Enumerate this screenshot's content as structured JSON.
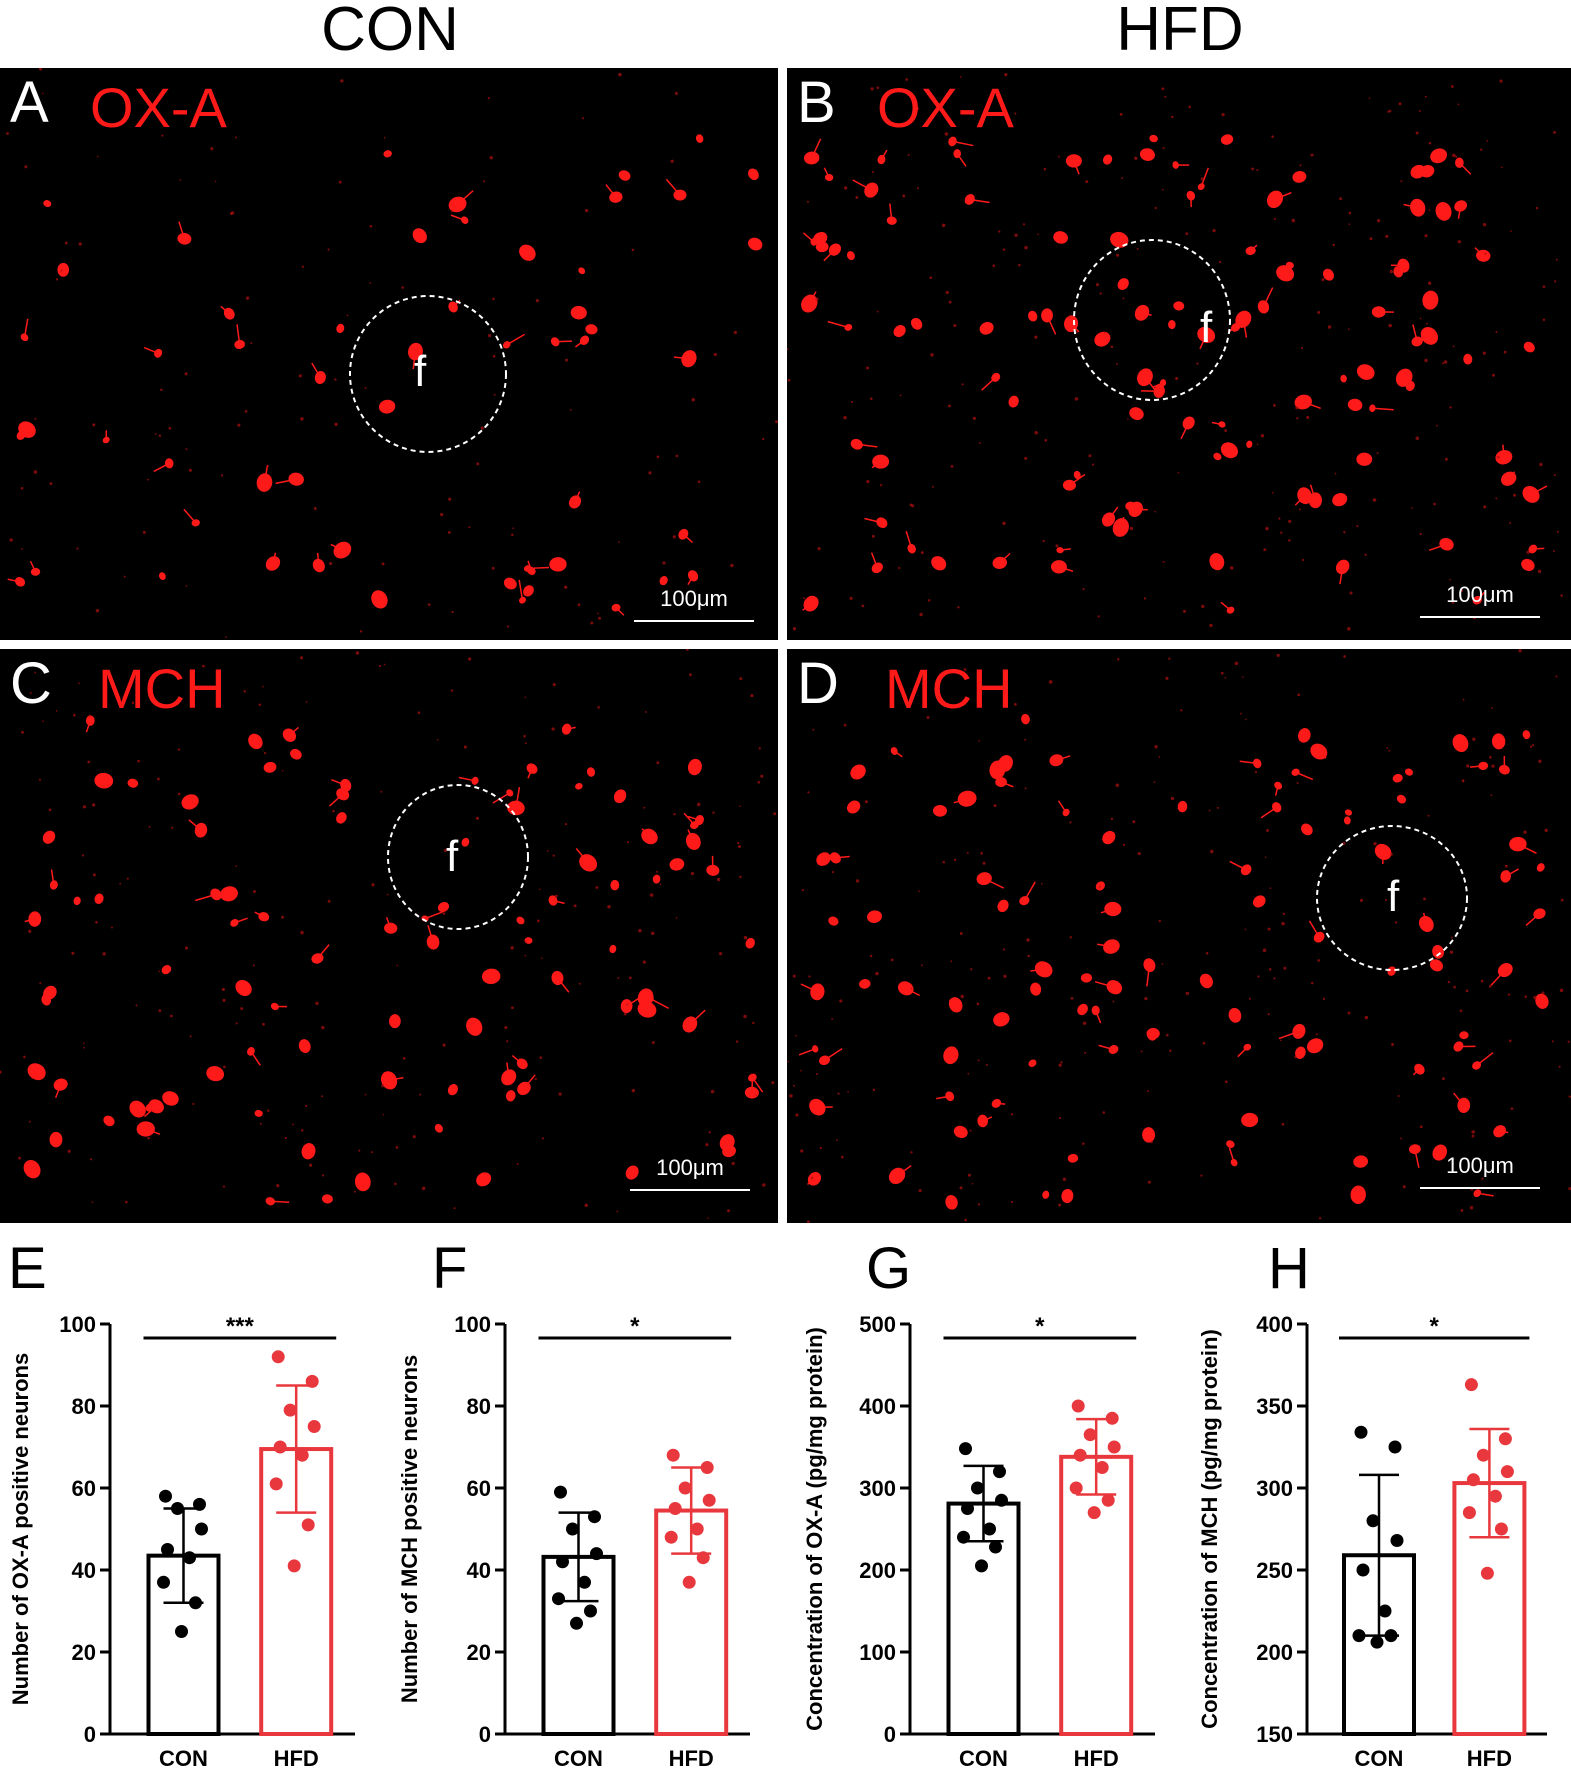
{
  "columns": {
    "left": "CON",
    "right": "HFD"
  },
  "panels": [
    {
      "letter": "A",
      "stain": "OX-A",
      "fiber": "f",
      "scale": "100μm"
    },
    {
      "letter": "B",
      "stain": "OX-A",
      "fiber": "f",
      "scale": "100μm"
    },
    {
      "letter": "C",
      "stain": "MCH",
      "fiber": "f",
      "scale": "100μm"
    },
    {
      "letter": "D",
      "stain": "MCH",
      "fiber": "f",
      "scale": "100μm"
    }
  ],
  "colors": {
    "con": "#000000",
    "hfd": "#e8383d",
    "stain": "#ff1a1a",
    "background": "#000000"
  },
  "chart_data": [
    {
      "letter": "E",
      "type": "bar",
      "ylabel": "Number of OX-A positive neurons",
      "ylim": [
        0,
        100
      ],
      "yticks": [
        0,
        20,
        40,
        60,
        80,
        100
      ],
      "categories": [
        "CON",
        "HFD"
      ],
      "means": [
        43.5,
        69.5
      ],
      "sd": [
        11.5,
        15.5
      ],
      "points": [
        [
          58,
          56,
          55,
          50,
          45,
          43,
          37,
          32,
          25
        ],
        [
          92,
          86,
          79,
          75,
          70,
          68,
          61,
          51,
          41
        ]
      ],
      "significance": "***"
    },
    {
      "letter": "F",
      "type": "bar",
      "ylabel": "Number of MCH positive neurons",
      "ylim": [
        0,
        100
      ],
      "yticks": [
        0,
        20,
        40,
        60,
        80,
        100
      ],
      "categories": [
        "CON",
        "HFD"
      ],
      "means": [
        43.2,
        54.5
      ],
      "sd": [
        10.8,
        10.5
      ],
      "points": [
        [
          59,
          53,
          50,
          44,
          42,
          37,
          33,
          30,
          27
        ],
        [
          68,
          65,
          60,
          57,
          55,
          50,
          48,
          43,
          37
        ]
      ],
      "significance": "*"
    },
    {
      "letter": "G",
      "type": "bar",
      "ylabel": "Concentration of OX-A (pg/mg protein)",
      "ylim": [
        0,
        500
      ],
      "yticks": [
        0,
        100,
        200,
        300,
        400,
        500
      ],
      "categories": [
        "CON",
        "HFD"
      ],
      "means": [
        281,
        338
      ],
      "sd": [
        46,
        46
      ],
      "points": [
        [
          348,
          320,
          300,
          285,
          275,
          250,
          240,
          228,
          205
        ],
        [
          400,
          385,
          365,
          350,
          340,
          325,
          300,
          285,
          270
        ]
      ],
      "significance": "*"
    },
    {
      "letter": "H",
      "type": "bar",
      "ylabel": "Concentration of MCH (pg/mg protein)",
      "ylim": [
        150,
        400
      ],
      "yticks": [
        150,
        200,
        250,
        300,
        350,
        400
      ],
      "categories": [
        "CON",
        "HFD"
      ],
      "means": [
        259,
        303
      ],
      "sd": [
        49,
        33
      ],
      "points": [
        [
          334,
          325,
          280,
          268,
          250,
          225,
          210,
          210,
          206
        ],
        [
          363,
          330,
          320,
          310,
          305,
          295,
          285,
          275,
          248
        ]
      ],
      "significance": "*"
    }
  ]
}
